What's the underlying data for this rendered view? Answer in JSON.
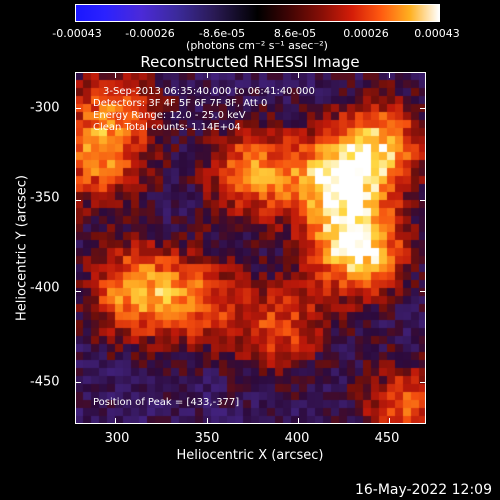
{
  "colorbar": {
    "ticks": [
      "-0.00043",
      "-0.00026",
      "-8.6e-05",
      "8.6e-05",
      "0.00026",
      "0.00043"
    ],
    "units": "(photons cm⁻² s⁻¹ asec⁻²)"
  },
  "chart_data": {
    "type": "heatmap",
    "title": "Reconstructed RHESSI Image",
    "xlabel": "Heliocentric X (arcsec)",
    "ylabel": "Heliocentric Y (arcsec)",
    "xlim": [
      278,
      470
    ],
    "ylim": [
      -473,
      -280
    ],
    "x_ticks": [
      "300",
      "350",
      "400",
      "450"
    ],
    "y_ticks": [
      "-300",
      "-350",
      "-400",
      "-450"
    ],
    "value_range": [
      -0.00043,
      0.00043
    ],
    "peak": [
      433,
      -377
    ],
    "hot_regions": [
      {
        "x": 433,
        "y": -377,
        "strength": 1.0
      },
      {
        "x": 420,
        "y": -340,
        "strength": 0.85
      },
      {
        "x": 445,
        "y": -320,
        "strength": 0.75
      },
      {
        "x": 375,
        "y": -335,
        "strength": 0.7
      },
      {
        "x": 310,
        "y": -400,
        "strength": 0.75
      },
      {
        "x": 290,
        "y": -330,
        "strength": 0.6
      },
      {
        "x": 345,
        "y": -405,
        "strength": 0.55
      },
      {
        "x": 390,
        "y": -420,
        "strength": 0.55
      },
      {
        "x": 460,
        "y": -465,
        "strength": 0.6
      },
      {
        "x": 300,
        "y": -300,
        "strength": 0.55
      }
    ]
  },
  "annotations": {
    "time_range": "3-Sep-2013 06:35:40.000 to 06:41:40.000",
    "detectors": "Detectors: 3F 4F 5F 6F 7F 8F, Att 0",
    "energy": "Energy Range: 12.0 - 25.0 keV",
    "method": "Clean     Total counts: 1.14E+04",
    "peak_position": "Position of Peak = [433,-377]"
  },
  "footer_date": "16-May-2022 12:09"
}
